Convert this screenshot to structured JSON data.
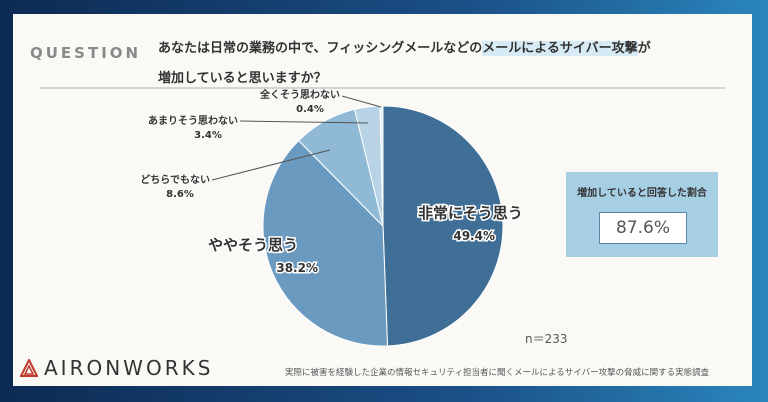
{
  "header": {
    "label": "QUESTION",
    "question_pre": "あなたは日常の業務の中で、フィッシングメールなどの",
    "question_hl": "メールによるサイバー攻撃",
    "question_post": "が",
    "question_line2": "増加していると思いますか？"
  },
  "chart_data": {
    "type": "pie",
    "title": "",
    "n": "n＝233",
    "slices": [
      {
        "label": "非常にそう思う",
        "value": 49.4,
        "value_label": "49.4%",
        "color": "#3f6f96"
      },
      {
        "label": "ややそう思う",
        "value": 38.2,
        "value_label": "38.2%",
        "color": "#6b9ac0"
      },
      {
        "label": "どちらでもない",
        "value": 8.6,
        "value_label": "8.6%",
        "color": "#8fb9d5"
      },
      {
        "label": "あまりそう思わない",
        "value": 3.4,
        "value_label": "3.4%",
        "color": "#b8d3e6"
      },
      {
        "label": "全くそう思わない",
        "value": 0.4,
        "value_label": "0.4%",
        "color": "#e3eef6"
      }
    ]
  },
  "summary": {
    "title": "増加していると回答した割合",
    "value": "87.6%"
  },
  "footer": {
    "logo": "AIRONWORKS",
    "source": "実際に被害を経験した企業の情報セキュリティ担当者に聞くメールによるサイバー攻撃の脅威に関する実態調査"
  }
}
